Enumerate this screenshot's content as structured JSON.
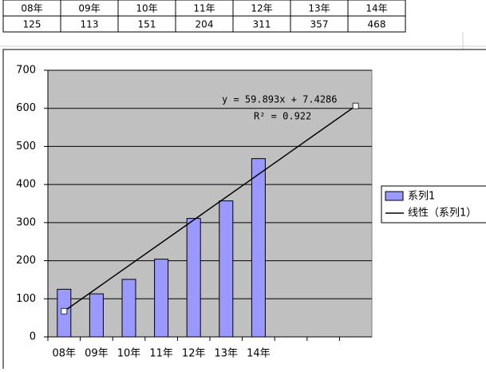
{
  "table": {
    "header": [
      "08年",
      "09年",
      "10年",
      "11年",
      "12年",
      "13年",
      "14年"
    ],
    "values": [
      125,
      113,
      151,
      204,
      311,
      357,
      468
    ]
  },
  "chart_data": {
    "type": "bar",
    "categories": [
      "08年",
      "09年",
      "10年",
      "11年",
      "12年",
      "13年",
      "14年",
      null,
      null,
      null
    ],
    "series": [
      {
        "name": "系列1",
        "color": "#9999ff",
        "values": [
          125,
          113,
          151,
          204,
          311,
          357,
          468,
          null,
          null,
          null
        ]
      }
    ],
    "trendline": {
      "name": "线性（系列1）",
      "slope": 59.893,
      "intercept": 7.4286,
      "equation": "y = 59.893x + 7.4286",
      "r2": "R² = 0.922"
    },
    "ylim": [
      0,
      700
    ],
    "yticks": [
      0,
      100,
      200,
      300,
      400,
      500,
      600,
      700
    ],
    "grid": true,
    "legend": "right"
  }
}
